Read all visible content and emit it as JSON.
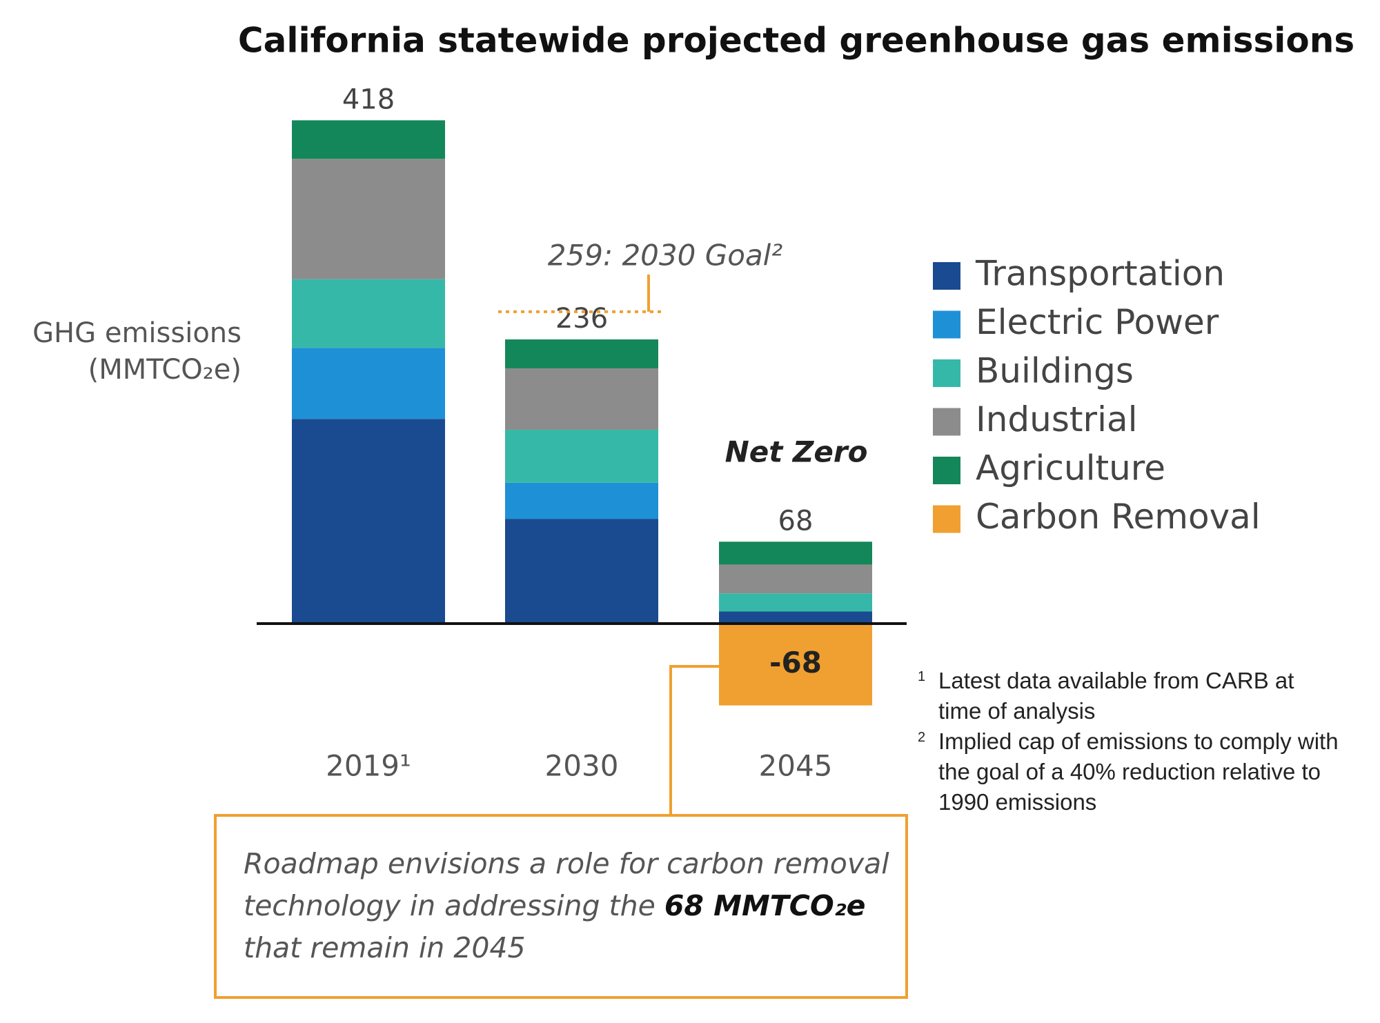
{
  "chart_data": {
    "type": "stacked_bar",
    "title": "California statewide projected greenhouse gas emissions",
    "y_label": [
      "GHG emissions",
      "(MMTCO₂e)"
    ],
    "categories": [
      "2019¹",
      "2030",
      "2045"
    ],
    "series": [
      {
        "name": "Transportation",
        "color": "#1a4a8f",
        "values": [
          170,
          87,
          10
        ]
      },
      {
        "name": "Electric Power",
        "color": "#1e90d6",
        "values": [
          59,
          30,
          0
        ]
      },
      {
        "name": "Buildings",
        "color": "#36b8a8",
        "values": [
          57,
          44,
          15
        ]
      },
      {
        "name": "Industrial",
        "color": "#8c8c8c",
        "values": [
          100,
          51,
          24
        ]
      },
      {
        "name": "Agriculture",
        "color": "#14875a",
        "values": [
          32,
          24,
          19
        ]
      },
      {
        "name": "Carbon Removal",
        "color": "#f0a030",
        "values": [
          null,
          null,
          -68
        ]
      }
    ],
    "totals": [
      418,
      236,
      68
    ],
    "ylim": [
      -100,
      440
    ],
    "goal": {
      "value": 259,
      "label": "259: 2030 Goal²",
      "category": 1
    },
    "annotation": "Net Zero",
    "callout": [
      "Roadmap envisions a role for carbon removal technology in addressing the ",
      "68 MMTCO₂e",
      " that remain in 2045"
    ],
    "footnotes": [
      {
        "marker": "1",
        "text": "Latest data available from CARB at time of analysis"
      },
      {
        "marker": "2",
        "text": "Implied cap of emissions to comply with the goal of a 40% reduction relative to 1990 emissions"
      }
    ]
  }
}
